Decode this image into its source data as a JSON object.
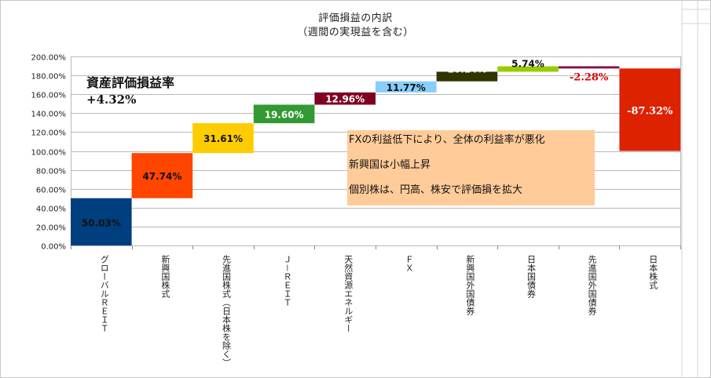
{
  "chart_data": {
    "type": "waterfall",
    "title": "評価損益の内訳",
    "subtitle": "（週間の実現益を含む）",
    "ylim": [
      0,
      200
    ],
    "yticks": [
      "0.00%",
      "20.00%",
      "40.00%",
      "60.00%",
      "80.00%",
      "100.00%",
      "120.00%",
      "140.00%",
      "160.00%",
      "180.00%",
      "200.00%"
    ],
    "grid": true,
    "categories": [
      "グローバルＲＥＩＴ",
      "新興国株式",
      "先進国株式（日本株を除く）",
      "Ｊ－ＲＥＩＴ",
      "天然資源エネルギー",
      "ＦＸ",
      "新興国外国債券",
      "日本国債券",
      "先進国外国債券",
      "日本株式"
    ],
    "values": [
      50.03,
      47.74,
      31.61,
      19.6,
      12.96,
      11.77,
      10.14,
      5.74,
      -2.28,
      -87.32
    ],
    "value_labels": [
      "50.03%",
      "47.74%",
      "31.61%",
      "19.60%",
      "12.96%",
      "11.77%",
      "10.14%",
      "5.74%",
      "-2.28%",
      "-87.32%"
    ],
    "colors": [
      "#003f7f",
      "#ff4500",
      "#ffcc00",
      "#339933",
      "#800020",
      "#87cefa",
      "#333300",
      "#99cc00",
      "#800040",
      "#dd2200"
    ],
    "label_colors": [
      "#111111",
      "#111111",
      "#111111",
      "#ffffff",
      "#ffffff",
      "#111111",
      "#ffffff",
      "#111111",
      "#dd0000",
      "#ffffff"
    ]
  },
  "summary": {
    "label": "資産評価損益率",
    "value": "+4.32%"
  },
  "annotation": {
    "lines": [
      "FXの利益低下により、全体の利益率が悪化",
      "新興国は小幅上昇",
      "個別株は、円高、株安で評価損を拡大"
    ]
  }
}
